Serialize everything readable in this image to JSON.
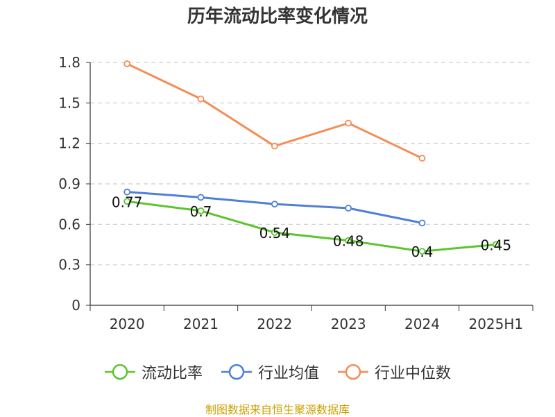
{
  "chart_data": {
    "type": "line",
    "title": "历年流动比率变化情况",
    "categories": [
      "2020",
      "2021",
      "2022",
      "2023",
      "2024",
      "2025H1"
    ],
    "ylim": [
      0,
      1.8
    ],
    "yticks": [
      "0",
      "0.3",
      "0.6",
      "0.9",
      "1.2",
      "1.5",
      "1.8"
    ],
    "grid": true,
    "legend_position": "bottom",
    "series": [
      {
        "name": "流动比率",
        "color": "#5cc42e",
        "values": [
          0.77,
          0.7,
          0.54,
          0.48,
          0.4,
          0.45
        ],
        "labels": [
          "0.77",
          "0.7",
          "0.54",
          "0.48",
          "0.4",
          "0.45"
        ]
      },
      {
        "name": "行业均值",
        "color": "#4f7fd8",
        "values": [
          0.84,
          0.8,
          0.75,
          0.72,
          0.61,
          null
        ]
      },
      {
        "name": "行业中位数",
        "color": "#f58c55",
        "values": [
          1.79,
          1.53,
          1.18,
          1.35,
          1.09,
          null
        ]
      }
    ]
  },
  "source": "制图数据来自恒生聚源数据库"
}
